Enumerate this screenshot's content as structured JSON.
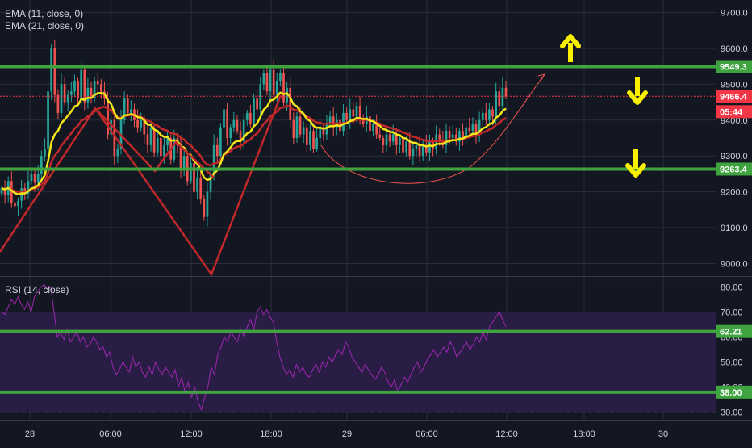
{
  "colors": {
    "background": "#131722",
    "grid": "#2a2e39",
    "up": "#26a69a",
    "down": "#ef5350",
    "ema_fast": "#f5e61a",
    "ema_slow": "#c0282a",
    "level_line": "#3fa33f",
    "rsi_line": "#9c27b0",
    "rsi_band": "#2a1d45",
    "price_tag": "#f23645",
    "arrow": "#f8f000",
    "text": "#d1d4dc"
  },
  "legend": {
    "ema1": "EMA (11, close, 0)",
    "ema2": "EMA (21, close, 0)",
    "rsi": "RSI (14, close)"
  },
  "chart_data": [
    {
      "type": "candlestick",
      "panel": "price",
      "grid": true,
      "y_ticks": [
        9000,
        9100,
        9200,
        9300,
        9400,
        9500,
        9600,
        9700
      ],
      "y_tick_labels": [
        "9000.0",
        "9100.0",
        "9200.0",
        "9300.0",
        "9400.0",
        "9500.0",
        "9600.0",
        "9700.0"
      ],
      "ylim": [
        8965,
        9735
      ],
      "x_tick_labels": [
        "28",
        "06:00",
        "12:00",
        "18:00",
        "29",
        "06:00",
        "12:00",
        "18:00",
        "30"
      ],
      "levels": [
        9549.3,
        9263.4
      ],
      "level_labels": [
        "9549.3",
        "9263.4"
      ],
      "last_price": 9466.4,
      "last_price_label": "9466.4",
      "countdown_label": "05:44",
      "close": [
        9210,
        9190,
        9230,
        9170,
        9160,
        9175,
        9210,
        9195,
        9230,
        9250,
        9225,
        9250,
        9300,
        9320,
        9480,
        9600,
        9470,
        9420,
        9500,
        9450,
        9470,
        9480,
        9510,
        9460,
        9540,
        9450,
        9490,
        9460,
        9510,
        9500,
        9480,
        9460,
        9360,
        9400,
        9300,
        9320,
        9400,
        9460,
        9420,
        9430,
        9400,
        9380,
        9400,
        9360,
        9330,
        9380,
        9310,
        9350,
        9300,
        9330,
        9350,
        9290,
        9350,
        9330,
        9260,
        9300,
        9230,
        9280,
        9200,
        9240,
        9180,
        9130,
        9200,
        9250,
        9330,
        9300,
        9380,
        9430,
        9350,
        9380,
        9400,
        9370,
        9340,
        9400,
        9420,
        9390,
        9460,
        9430,
        9500,
        9530,
        9480,
        9540,
        9470,
        9510,
        9530,
        9450,
        9490,
        9400,
        9350,
        9410,
        9360,
        9380,
        9330,
        9370,
        9320,
        9350,
        9380,
        9360,
        9390,
        9410,
        9380,
        9400,
        9370,
        9420,
        9400,
        9430,
        9410,
        9440,
        9400,
        9390,
        9410,
        9370,
        9390,
        9360,
        9350,
        9330,
        9360,
        9340,
        9360,
        9330,
        9350,
        9310,
        9340,
        9300,
        9320,
        9330,
        9300,
        9330,
        9310,
        9340,
        9320,
        9360,
        9340,
        9330,
        9370,
        9350,
        9360,
        9340,
        9370,
        9350,
        9380,
        9370,
        9390,
        9360,
        9400,
        9420,
        9400,
        9430,
        9410,
        9480,
        9440,
        9490,
        9466.4
      ],
      "series": [
        {
          "name": "EMA (11, close, 0)",
          "ema_period": 11
        },
        {
          "name": "EMA (21, close, 0)",
          "ema_period": 21
        }
      ]
    },
    {
      "type": "line",
      "panel": "rsi",
      "grid": true,
      "y_ticks": [
        30,
        40,
        50,
        60,
        70,
        80
      ],
      "y_tick_labels": [
        "30.00",
        "40.00",
        "50.00",
        "60.00",
        "70.00",
        "80.00"
      ],
      "ylim": [
        27,
        84
      ],
      "upper_band": 70,
      "lower_band": 30,
      "levels": [
        62.21,
        38.0
      ],
      "level_labels": [
        "62.21",
        "38.00"
      ],
      "values": [
        70,
        69,
        72,
        75,
        73,
        76,
        73,
        71,
        74,
        70,
        76,
        78,
        80,
        81,
        79,
        80,
        70,
        60,
        62,
        59,
        63,
        58,
        60,
        62,
        58,
        60,
        56,
        57,
        60,
        58,
        55,
        56,
        52,
        54,
        48,
        45,
        47,
        50,
        48,
        46,
        52,
        48,
        50,
        46,
        44,
        48,
        45,
        50,
        47,
        45,
        48,
        46,
        44,
        47,
        40,
        44,
        38,
        42,
        36,
        40,
        34,
        31,
        36,
        40,
        48,
        45,
        53,
        56,
        60,
        58,
        62,
        60,
        58,
        63,
        60,
        64,
        67,
        63,
        70,
        72,
        69,
        71,
        68,
        66,
        58,
        52,
        48,
        45,
        47,
        44,
        49,
        46,
        48,
        45,
        44,
        47,
        49,
        46,
        50,
        48,
        52,
        50,
        53,
        55,
        53,
        58,
        56,
        52,
        50,
        48,
        46,
        49,
        47,
        45,
        43,
        45,
        48,
        46,
        42,
        40,
        43,
        38,
        41,
        44,
        42,
        45,
        48,
        50,
        46,
        48,
        51,
        53,
        55,
        52,
        54,
        56,
        54,
        58,
        56,
        52,
        54,
        56,
        58,
        55,
        57,
        60,
        58,
        62,
        59,
        64,
        66,
        68,
        70,
        67,
        64
      ]
    }
  ]
}
